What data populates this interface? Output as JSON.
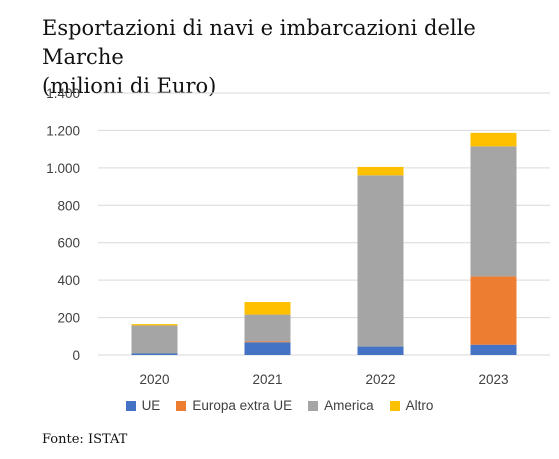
{
  "chart_data": {
    "type": "bar",
    "stacked": true,
    "title_lines": [
      "Esportazioni di navi e imbarcazioni delle Marche",
      "(milioni di Euro)"
    ],
    "categories": [
      "2020",
      "2021",
      "2022",
      "2023"
    ],
    "series": [
      {
        "name": "UE",
        "color": "#4472C4",
        "values": [
          8,
          68,
          45,
          55
        ]
      },
      {
        "name": "Europa extra UE",
        "color": "#ED7D31",
        "values": [
          0,
          5,
          0,
          365
        ]
      },
      {
        "name": "America",
        "color": "#A5A5A5",
        "values": [
          150,
          143,
          915,
          695
        ]
      },
      {
        "name": "Altro",
        "color": "#FFC000",
        "values": [
          7,
          67,
          45,
          72
        ]
      }
    ],
    "ylim": [
      0,
      1400
    ],
    "yticks": [
      0,
      200,
      400,
      600,
      800,
      1000,
      1200,
      1400
    ],
    "ytick_labels": [
      "0",
      "200",
      "400",
      "600",
      "800",
      "1.000",
      "1.200",
      "1.400"
    ],
    "grid": true,
    "legend_position": "bottom"
  },
  "source": "Fonte: ISTAT"
}
